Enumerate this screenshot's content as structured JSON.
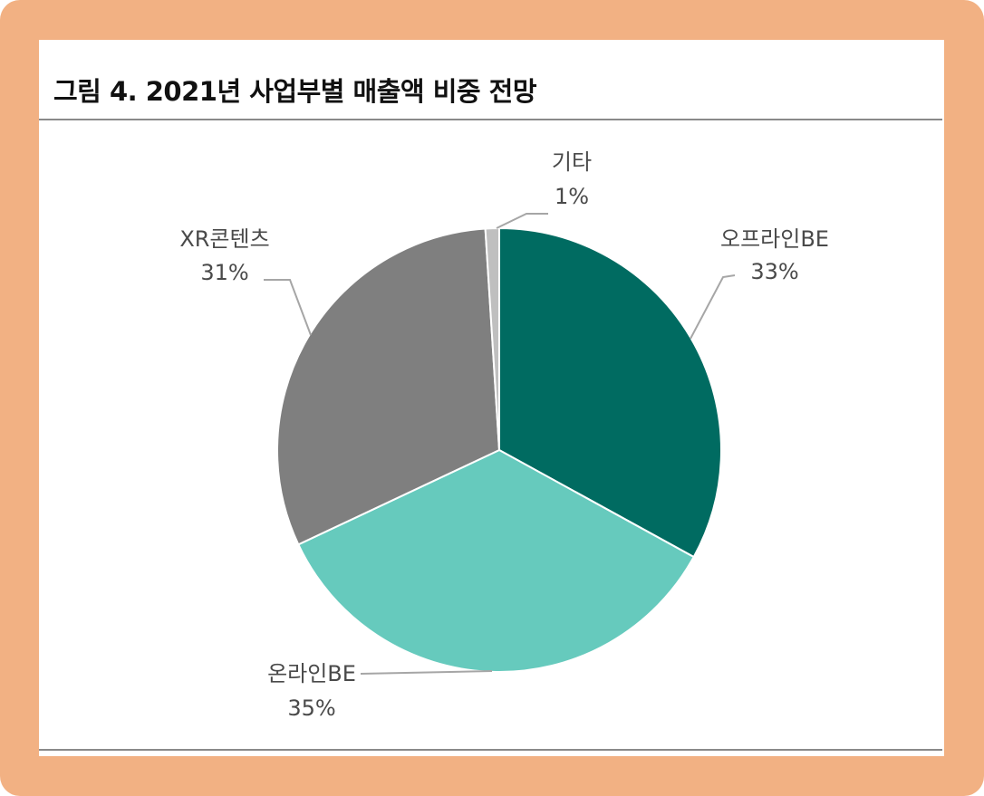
{
  "title": "그림 4. 2021년 사업부별 매출액 비중 전망",
  "colors": {
    "frame": "#f2b183",
    "offline_be": "#006b61",
    "online_be": "#66cabd",
    "xr_contents": "#7f7f7f",
    "other": "#bfbfbf",
    "leader": "#a6a6a6"
  },
  "chart_data": {
    "type": "pie",
    "title": "그림 4. 2021년 사업부별 매출액 비중 전망",
    "unit": "%",
    "slices": [
      {
        "label": "오프라인BE",
        "value": 33,
        "value_label": "33%",
        "color": "#006b61"
      },
      {
        "label": "온라인BE",
        "value": 35,
        "value_label": "35%",
        "color": "#66cabd"
      },
      {
        "label": "XR콘텐츠",
        "value": 31,
        "value_label": "31%",
        "color": "#7f7f7f"
      },
      {
        "label": "기타",
        "value": 1,
        "value_label": "1%",
        "color": "#bfbfbf"
      }
    ],
    "start_angle": "12 o'clock",
    "direction": "clockwise",
    "legend": "none (labels on leader lines)"
  }
}
